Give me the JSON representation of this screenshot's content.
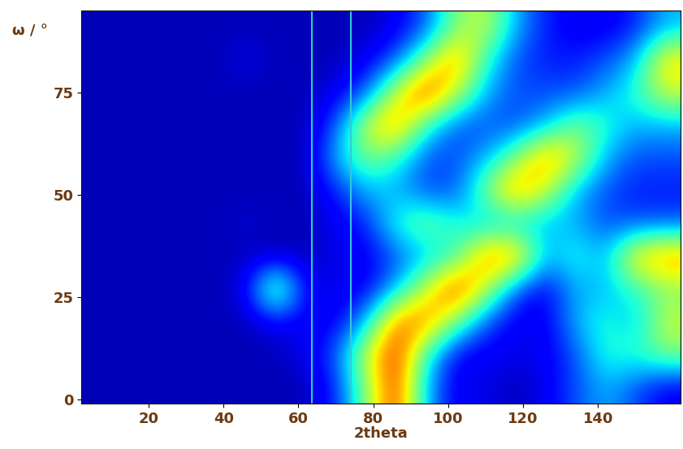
{
  "chart_data": {
    "type": "heatmap",
    "xlabel": "2theta",
    "ylabel": "ω / °",
    "xlim": [
      2,
      162
    ],
    "ylim": [
      -1,
      95
    ],
    "xticks": [
      20,
      40,
      60,
      80,
      100,
      120,
      140
    ],
    "yticks": [
      0,
      25,
      50,
      75
    ],
    "x_edges": [
      2,
      10,
      18,
      26,
      34,
      42,
      50,
      58,
      66,
      74,
      82,
      90,
      98,
      106,
      114,
      122,
      130,
      138,
      146,
      154,
      162
    ],
    "y_edges": [
      -1,
      7,
      15,
      23,
      31,
      39,
      47,
      55,
      63,
      71,
      79,
      87,
      95
    ],
    "color_range": [
      0,
      10
    ],
    "vertical_lines": [
      63.5,
      74
    ],
    "cells": [
      [
        0.5,
        0.5,
        0.5,
        0.5,
        0.5,
        0.5,
        0.5,
        0.5,
        1.5,
        5,
        9,
        3,
        1,
        1,
        0.5,
        1,
        2,
        3,
        2,
        1
      ],
      [
        0.5,
        0.5,
        0.5,
        0.5,
        0.5,
        0.5,
        0.5,
        1,
        2,
        6,
        9,
        4,
        1,
        1,
        1,
        1,
        2,
        4,
        4,
        5
      ],
      [
        0.5,
        0.5,
        0.5,
        0.5,
        0.5,
        0.5,
        1,
        1,
        1,
        3,
        8,
        8,
        5,
        2,
        1,
        1,
        3,
        4,
        3,
        6
      ],
      [
        0.5,
        0.5,
        0.5,
        0.5,
        0.5,
        1,
        6,
        1,
        1,
        1,
        3,
        6,
        9,
        6,
        2,
        1,
        3,
        3,
        4,
        5
      ],
      [
        0.5,
        0.5,
        0.5,
        0.5,
        0.5,
        0.5,
        0.5,
        0.5,
        1,
        1,
        2,
        3,
        4,
        8,
        8,
        3,
        4,
        3,
        7,
        8
      ],
      [
        0.5,
        0.5,
        0.5,
        0.5,
        0.5,
        0.8,
        0.5,
        0.5,
        1,
        1.5,
        4,
        5,
        4,
        3,
        3,
        3,
        3,
        2,
        2,
        2
      ],
      [
        0.5,
        0.5,
        0.5,
        0.5,
        0.5,
        0.5,
        0.5,
        0.5,
        1.5,
        3,
        3,
        2,
        2,
        5,
        8,
        6,
        3,
        2,
        1.5,
        1.5
      ],
      [
        0.5,
        0.5,
        0.5,
        0.5,
        0.5,
        0.5,
        0.5,
        0.5,
        3,
        5,
        4,
        2,
        2,
        3,
        5,
        8,
        6,
        3,
        2,
        2
      ],
      [
        0.5,
        0.5,
        0.5,
        0.5,
        0.5,
        0.5,
        0.5,
        0.5,
        2,
        6,
        8,
        4,
        2,
        2,
        2,
        3,
        5,
        4,
        3,
        3
      ],
      [
        0.5,
        0.5,
        0.5,
        0.5,
        0.5,
        0.5,
        0.5,
        0.5,
        1,
        2,
        6,
        9,
        6,
        3,
        2,
        2,
        2,
        3,
        4,
        6
      ],
      [
        0.5,
        0.5,
        0.5,
        0.5,
        0.5,
        1,
        0.5,
        0.5,
        0.5,
        1,
        2,
        5,
        8,
        4,
        2,
        1.5,
        1.5,
        2,
        3,
        7
      ],
      [
        0.5,
        0.5,
        0.5,
        0.5,
        0.5,
        0.5,
        0.5,
        0.5,
        0.5,
        0.5,
        1,
        2,
        5,
        6,
        3,
        1.5,
        1,
        1,
        1.5,
        3
      ]
    ]
  }
}
